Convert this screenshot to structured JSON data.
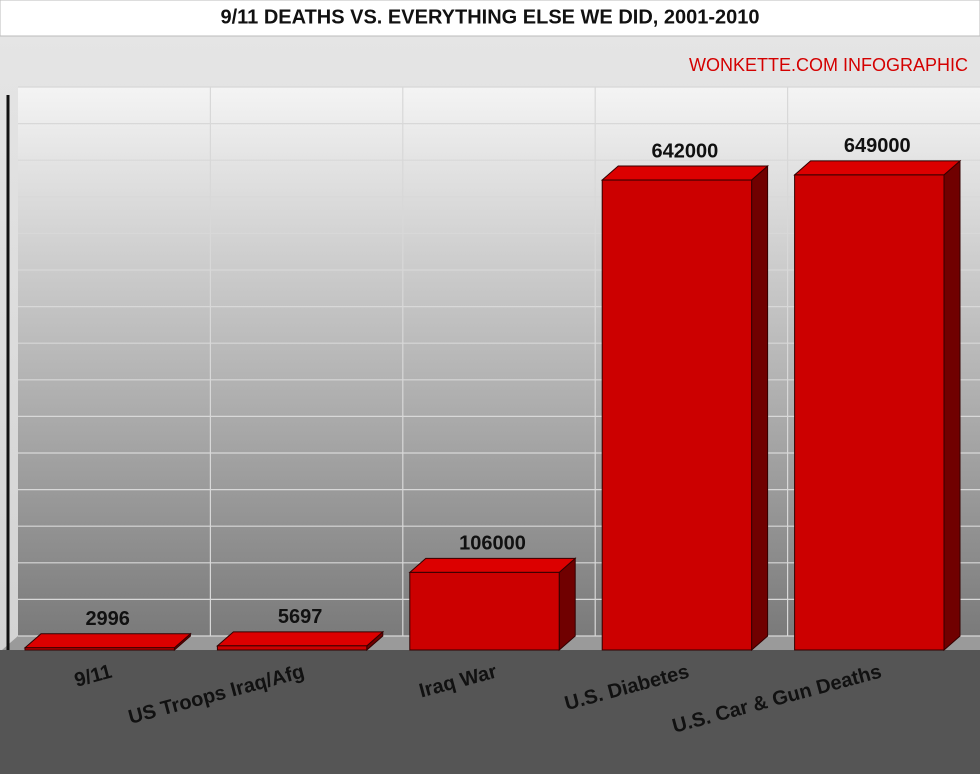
{
  "chart_data": {
    "type": "bar3d",
    "title": "9/11 DEATHS VS. EVERYTHING ELSE WE DID, 2001-2010",
    "subtitle": "WONKETTE.COM INFOGRAPHIC",
    "categories": [
      "9/11",
      "US Troops Iraq/Afg",
      "Iraq War",
      "U.S. Diabetes",
      "U.S. Car & Gun Deaths"
    ],
    "values": [
      2996,
      5697,
      106000,
      642000,
      649000
    ],
    "color": "#cc0000",
    "ylim": [
      0,
      750000
    ],
    "yticks": [
      0,
      50000,
      100000,
      150000,
      200000,
      250000,
      300000,
      350000,
      400000,
      450000,
      500000,
      550000,
      600000,
      650000,
      700000,
      750000
    ],
    "grid": true
  }
}
